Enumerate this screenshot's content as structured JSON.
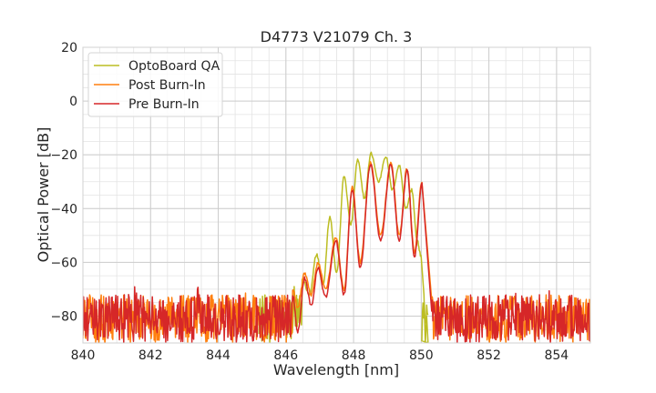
{
  "chart_data": {
    "type": "line",
    "title": "D4773 V21079 Ch. 3",
    "xlabel": "Wavelength [nm]",
    "ylabel": "Optical Power [dB]",
    "xlim": [
      840,
      855
    ],
    "ylim": [
      -90,
      20
    ],
    "x_major_ticks": [
      840,
      842,
      844,
      846,
      848,
      850,
      852,
      854
    ],
    "x_tick_labels": [
      "840",
      "842",
      "844",
      "846",
      "848",
      "850",
      "852",
      "854"
    ],
    "y_major_ticks": [
      -80,
      -60,
      -40,
      -20,
      0,
      20
    ],
    "y_tick_labels": [
      "−80",
      "−60",
      "−40",
      "−20",
      "0",
      "20"
    ],
    "grid": true,
    "minor_grid": true,
    "legend_position": "top-left",
    "noise_floor": {
      "min": -90,
      "max": -72
    },
    "series": [
      {
        "name": "OptoBoard QA",
        "color": "#bcbd22",
        "noise_range": [
          845.2,
          850.2
        ],
        "peaks": [
          {
            "x": 846.48,
            "y": -66
          },
          {
            "x": 846.9,
            "y": -57
          },
          {
            "x": 847.3,
            "y": -43
          },
          {
            "x": 847.72,
            "y": -28
          },
          {
            "x": 848.12,
            "y": -22
          },
          {
            "x": 848.52,
            "y": -19.5
          },
          {
            "x": 848.95,
            "y": -20.5
          },
          {
            "x": 849.35,
            "y": -24
          },
          {
            "x": 849.72,
            "y": -33
          },
          {
            "x": 850.0,
            "y": -58
          }
        ],
        "valleys": [
          {
            "x": 846.7,
            "y": -72
          },
          {
            "x": 847.1,
            "y": -68
          },
          {
            "x": 847.5,
            "y": -64
          },
          {
            "x": 847.92,
            "y": -46
          },
          {
            "x": 848.32,
            "y": -36
          },
          {
            "x": 848.74,
            "y": -30
          },
          {
            "x": 849.15,
            "y": -33
          },
          {
            "x": 849.55,
            "y": -40
          },
          {
            "x": 849.88,
            "y": -52
          }
        ]
      },
      {
        "name": "Post Burn-In",
        "color": "#ff7f0e",
        "noise_range": [
          840,
          855
        ],
        "exclude_noise": [
          846.3,
          850.3
        ],
        "peaks": [
          {
            "x": 846.2,
            "y": -70
          },
          {
            "x": 846.55,
            "y": -64
          },
          {
            "x": 846.95,
            "y": -60
          },
          {
            "x": 847.48,
            "y": -51
          },
          {
            "x": 847.96,
            "y": -32
          },
          {
            "x": 848.5,
            "y": -23
          },
          {
            "x": 849.1,
            "y": -23
          },
          {
            "x": 849.58,
            "y": -25
          },
          {
            "x": 850.02,
            "y": -30
          }
        ],
        "valleys": [
          {
            "x": 846.35,
            "y": -77
          },
          {
            "x": 846.75,
            "y": -72
          },
          {
            "x": 847.17,
            "y": -70
          },
          {
            "x": 847.72,
            "y": -70
          },
          {
            "x": 848.2,
            "y": -60
          },
          {
            "x": 848.8,
            "y": -50
          },
          {
            "x": 849.35,
            "y": -50
          },
          {
            "x": 849.8,
            "y": -56
          }
        ]
      },
      {
        "name": "Pre Burn-In",
        "color": "#d62728",
        "noise_range": [
          840,
          855
        ],
        "exclude_noise": [
          846.3,
          850.3
        ],
        "peaks": [
          {
            "x": 846.2,
            "y": -72
          },
          {
            "x": 846.55,
            "y": -66
          },
          {
            "x": 846.95,
            "y": -62
          },
          {
            "x": 847.48,
            "y": -52
          },
          {
            "x": 847.96,
            "y": -33
          },
          {
            "x": 848.5,
            "y": -23.5
          },
          {
            "x": 849.1,
            "y": -23.5
          },
          {
            "x": 849.58,
            "y": -26
          },
          {
            "x": 850.02,
            "y": -31
          }
        ],
        "valleys": [
          {
            "x": 846.35,
            "y": -86
          },
          {
            "x": 846.75,
            "y": -76
          },
          {
            "x": 847.17,
            "y": -73
          },
          {
            "x": 847.72,
            "y": -72
          },
          {
            "x": 848.2,
            "y": -62
          },
          {
            "x": 848.8,
            "y": -52
          },
          {
            "x": 849.35,
            "y": -52
          },
          {
            "x": 849.8,
            "y": -58
          }
        ]
      }
    ]
  }
}
